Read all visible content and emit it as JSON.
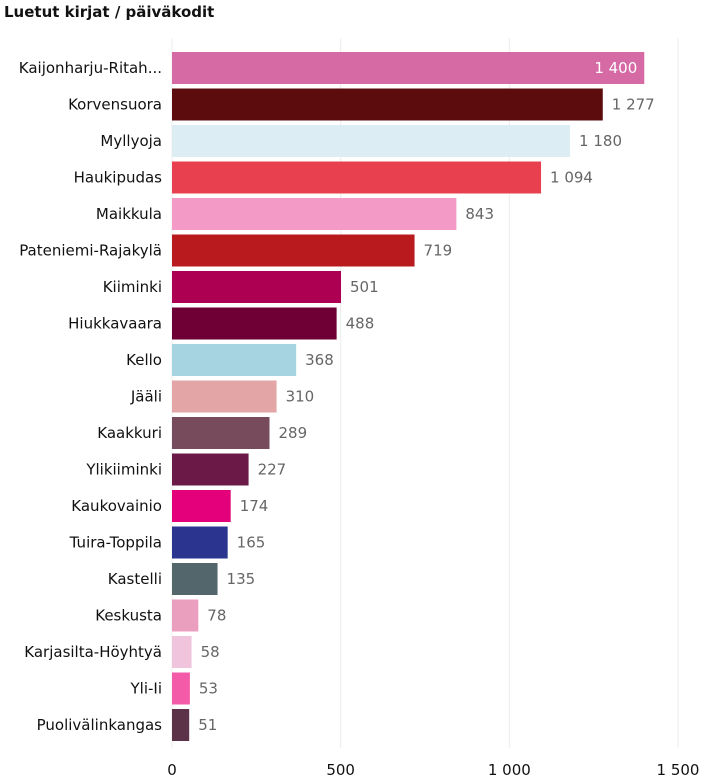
{
  "chart_data": {
    "type": "bar",
    "orientation": "horizontal",
    "title": "Luetut kirjat / päiväkodit",
    "xlabel": "",
    "ylabel": "",
    "xlim": [
      0,
      1500
    ],
    "xticks": [
      0,
      500,
      1000,
      1500
    ],
    "xtick_labels": [
      "0",
      "500",
      "1 000",
      "1 500"
    ],
    "grid": true,
    "categories": [
      {
        "label": "Kaijonharju-Ritah...",
        "value": 1400,
        "value_label": "1 400",
        "color": "#d56aa5"
      },
      {
        "label": "Korvensuora",
        "value": 1277,
        "value_label": "1 277",
        "color": "#5c0c0c"
      },
      {
        "label": "Myllyoja",
        "value": 1180,
        "value_label": "1 180",
        "color": "#dceef4"
      },
      {
        "label": "Haukipudas",
        "value": 1094,
        "value_label": "1 094",
        "color": "#e8404f"
      },
      {
        "label": "Maikkula",
        "value": 843,
        "value_label": "843",
        "color": "#f39ac7"
      },
      {
        "label": "Pateniemi-Rajakylä",
        "value": 719,
        "value_label": "719",
        "color": "#b81a1e"
      },
      {
        "label": "Kiiminki",
        "value": 501,
        "value_label": "501",
        "color": "#ad0052"
      },
      {
        "label": "Hiukkavaara",
        "value": 488,
        "value_label": "488",
        "color": "#6e0035"
      },
      {
        "label": "Kello",
        "value": 368,
        "value_label": "368",
        "color": "#a6d4e0"
      },
      {
        "label": "Jääli",
        "value": 310,
        "value_label": "310",
        "color": "#e3a5a5"
      },
      {
        "label": "Kaakkuri",
        "value": 289,
        "value_label": "289",
        "color": "#774b5c"
      },
      {
        "label": "Ylikiiminki",
        "value": 227,
        "value_label": "227",
        "color": "#6b1a48"
      },
      {
        "label": "Kaukovainio",
        "value": 174,
        "value_label": "174",
        "color": "#e4007a"
      },
      {
        "label": "Tuira-Toppila",
        "value": 165,
        "value_label": "165",
        "color": "#2b3590"
      },
      {
        "label": "Kastelli",
        "value": 135,
        "value_label": "135",
        "color": "#53666b"
      },
      {
        "label": "Keskusta",
        "value": 78,
        "value_label": "78",
        "color": "#eb9fbf"
      },
      {
        "label": "Karjasilta-Höyhtyä",
        "value": 58,
        "value_label": "58",
        "color": "#f0c4dc"
      },
      {
        "label": "Yli-Ii",
        "value": 53,
        "value_label": "53",
        "color": "#f35aa8"
      },
      {
        "label": "Puolivälinkangas",
        "value": 51,
        "value_label": "51",
        "color": "#5c3248"
      }
    ]
  }
}
